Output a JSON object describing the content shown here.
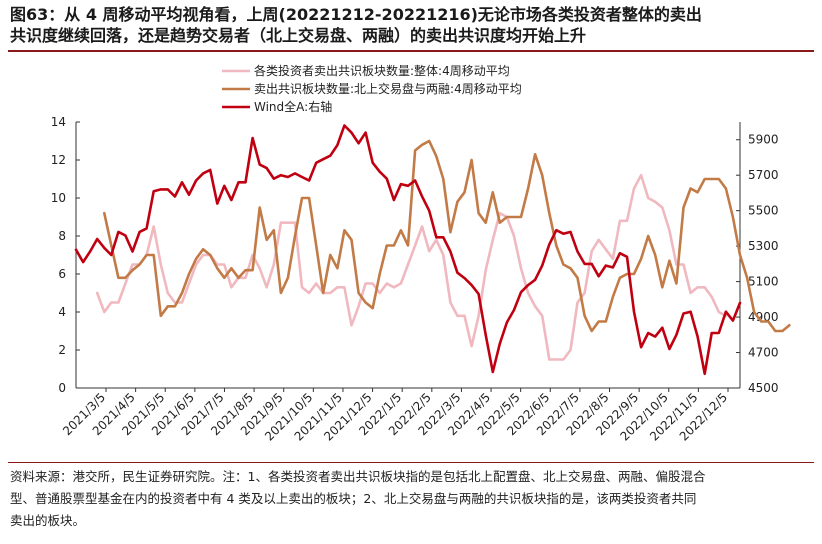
{
  "title": {
    "line1": "图63：从 4 周移动平均视角看，上周(20221212-20221216)无论市场各类投资者整体的卖出",
    "line2": "共识度继续回落，还是趋势交易者（北上交易盘、两融）的卖出共识度均开始上升"
  },
  "source": {
    "line1": "资料来源：港交所，民生证券研究院。注：1、各类投资者卖出共识板块指的是包括北上配置盘、北上交易盘、两融、偏股混合",
    "line2": "型、普通股票型基金在内的投资者中有 4 类及以上卖出的板块；2、北上交易盘与两融的共识板块指的是，该两类投资者共同",
    "line3": "卖出的板块。"
  },
  "colors": {
    "series1": "#f0b8bf",
    "series2": "#c27b47",
    "series3": "#c00010",
    "axis": "#333333",
    "title_rule": "#8a1a1a"
  },
  "chart_data": {
    "type": "line",
    "x_tick_labels": [
      "2021/3/5",
      "2021/4/5",
      "2021/5/5",
      "2021/6/5",
      "2021/7/5",
      "2021/8/5",
      "2021/9/5",
      "2021/10/5",
      "2021/11/5",
      "2021/12/5",
      "2022/1/5",
      "2022/2/5",
      "2022/3/5",
      "2022/4/5",
      "2022/5/5",
      "2022/6/5",
      "2022/7/5",
      "2022/8/5",
      "2022/9/5",
      "2022/10/5",
      "2022/11/5",
      "2022/12/5"
    ],
    "x_range": [
      0,
      94
    ],
    "left_axis": {
      "ticks": [
        "0",
        "2",
        "4",
        "6",
        "8",
        "10",
        "12",
        "14"
      ],
      "ylim": [
        0,
        14
      ]
    },
    "right_axis": {
      "ticks": [
        "4500",
        "4700",
        "4900",
        "5100",
        "5300",
        "5500",
        "5700",
        "5900"
      ],
      "ylim": [
        4500,
        6000
      ],
      "label": "右轴"
    },
    "legend": [
      "各类投资者卖出共识板块数量:整体:4周移动平均",
      "卖出共识板块数量:北上交易盘与两融:4周移动平均",
      "Wind全A:右轴"
    ],
    "series": [
      {
        "name": "各类投资者卖出共识板块数量:整体:4周移动平均",
        "axis": "left",
        "x_start": 3,
        "values": [
          5.0,
          4.0,
          4.5,
          4.5,
          5.5,
          6.5,
          6.5,
          7.0,
          8.5,
          6.5,
          5.0,
          4.5,
          4.5,
          5.5,
          6.5,
          7.0,
          7.0,
          6.5,
          6.5,
          5.3,
          5.8,
          5.8,
          7.0,
          6.3,
          5.3,
          6.5,
          8.7,
          8.7,
          8.7,
          5.3,
          5.0,
          5.5,
          5.0,
          5.0,
          5.3,
          5.3,
          3.3,
          4.3,
          5.5,
          5.5,
          5.0,
          5.5,
          5.3,
          5.5,
          6.5,
          7.5,
          8.5,
          7.2,
          7.8,
          7.0,
          4.5,
          3.8,
          3.8,
          2.2,
          3.8,
          6.2,
          7.8,
          9.2,
          9.0,
          8.0,
          6.3,
          5.0,
          4.3,
          3.8,
          1.5,
          1.5,
          1.5,
          2.0,
          4.5,
          5.0,
          7.2,
          7.8,
          7.3,
          6.8,
          8.8,
          8.8,
          10.5,
          11.2,
          10.0,
          9.8,
          9.5,
          8.3,
          6.5,
          6.5,
          5.0,
          5.3,
          5.3,
          4.8,
          4.0,
          3.8
        ]
      },
      {
        "name": "卖出共识板块数量:北上交易盘与两融:4周移动平均",
        "axis": "left",
        "x_start": 4,
        "values": [
          9.2,
          7.5,
          5.8,
          5.8,
          6.2,
          6.5,
          7.0,
          7.0,
          3.8,
          4.3,
          4.3,
          5.0,
          6.0,
          6.8,
          7.3,
          7.0,
          6.3,
          5.8,
          6.3,
          5.8,
          6.2,
          6.2,
          9.5,
          7.8,
          8.3,
          5.0,
          5.8,
          8.0,
          10.0,
          10.0,
          7.5,
          5.0,
          7.0,
          6.3,
          8.3,
          7.8,
          5.0,
          4.5,
          4.2,
          6.0,
          7.5,
          7.5,
          8.3,
          7.5,
          12.5,
          12.8,
          13.0,
          12.2,
          11.0,
          8.2,
          9.8,
          10.3,
          12.0,
          9.2,
          8.7,
          10.3,
          8.7,
          9.0,
          9.0,
          9.0,
          10.5,
          12.3,
          11.2,
          9.2,
          7.5,
          6.5,
          6.3,
          5.8,
          3.8,
          3.0,
          3.5,
          3.5,
          4.8,
          5.8,
          6.0,
          6.0,
          6.8,
          8.0,
          7.0,
          5.3,
          6.7,
          5.5,
          9.5,
          10.5,
          10.3,
          11.0,
          11.0,
          11.0,
          10.5,
          9.0,
          7.0,
          5.8,
          4.0,
          3.5,
          3.5,
          3.0,
          3.0,
          3.3
        ]
      },
      {
        "name": "Wind全A:右轴",
        "axis": "right",
        "x_start": 0,
        "values": [
          5280,
          5210,
          5270,
          5340,
          5290,
          5250,
          5380,
          5360,
          5270,
          5380,
          5400,
          5610,
          5620,
          5620,
          5580,
          5660,
          5590,
          5670,
          5710,
          5730,
          5540,
          5640,
          5560,
          5660,
          5660,
          5910,
          5760,
          5740,
          5680,
          5700,
          5690,
          5710,
          5690,
          5670,
          5770,
          5790,
          5810,
          5870,
          5980,
          5940,
          5880,
          5940,
          5770,
          5720,
          5680,
          5560,
          5650,
          5640,
          5670,
          5580,
          5500,
          5350,
          5350,
          5270,
          5150,
          5120,
          5080,
          5030,
          4800,
          4590,
          4750,
          4870,
          4940,
          5040,
          5080,
          5110,
          5190,
          5310,
          5390,
          5370,
          5380,
          5270,
          5200,
          5200,
          5130,
          5190,
          5180,
          5260,
          5240,
          4930,
          4730,
          4810,
          4790,
          4840,
          4720,
          4800,
          4920,
          4930,
          4790,
          4580,
          4810,
          4810,
          4930,
          4880,
          4980
        ]
      }
    ]
  }
}
